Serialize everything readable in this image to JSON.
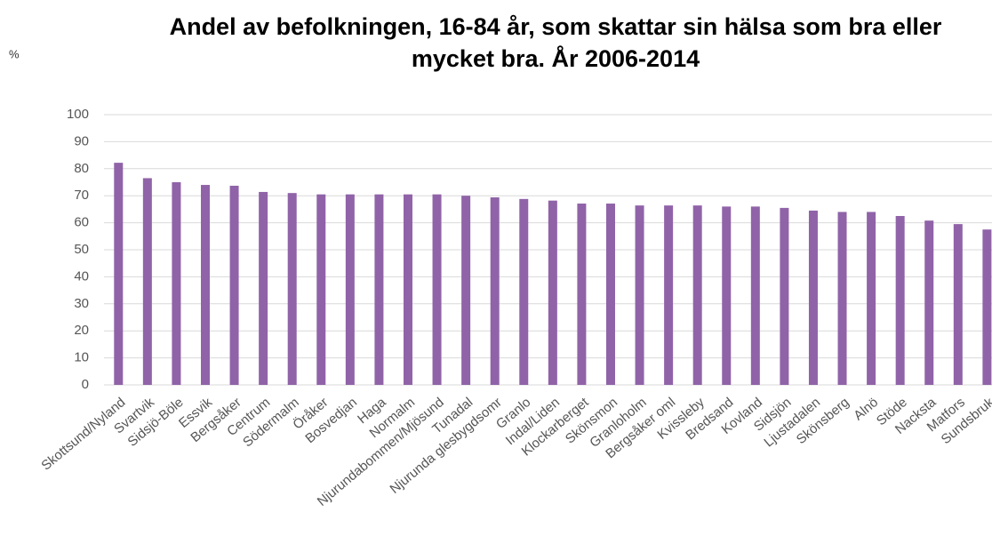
{
  "chart_data": {
    "type": "bar",
    "title": "Andel av befolkningen, 16-84 år,  som skattar sin hälsa som bra eller mycket bra. År 2006-2014",
    "y_unit_label": "%",
    "categories": [
      "Skottsund/Nyland",
      "Svartvik",
      "Sidsjö-Böle",
      "Essvik",
      "Bergsåker",
      "Centrum",
      "Södermalm",
      "Öråker",
      "Bosvedjan",
      "Haga",
      "Normalm",
      "Njurundabommen/Mjösund",
      "Tunadal",
      "Njurunda glesbygdsomr",
      "Granlo",
      "Indal/Liden",
      "Klockarberget",
      "Skönsmon",
      "Granloholm",
      "Bergsåker oml",
      "Kvissleby",
      "Bredsand",
      "Kovland",
      "Sidsjön",
      "Ljustadalen",
      "Skönsberg",
      "Alnö",
      "Stöde",
      "Nacksta",
      "Matfors",
      "Sundsbruk"
    ],
    "values": [
      82.2,
      76.5,
      75,
      74,
      73.7,
      71.4,
      71,
      70.5,
      70.5,
      70.5,
      70.5,
      70.5,
      70,
      69.4,
      68.8,
      68.2,
      67.1,
      67.1,
      66.4,
      66.4,
      66.4,
      66,
      66,
      65.5,
      64.5,
      64,
      64,
      62.5,
      60.8,
      59.5,
      57.5
    ],
    "color": "#9063a8",
    "ylim": [
      0,
      100
    ],
    "yticks": [
      0,
      10,
      20,
      30,
      40,
      50,
      60,
      70,
      80,
      90,
      100
    ],
    "grid": true
  }
}
